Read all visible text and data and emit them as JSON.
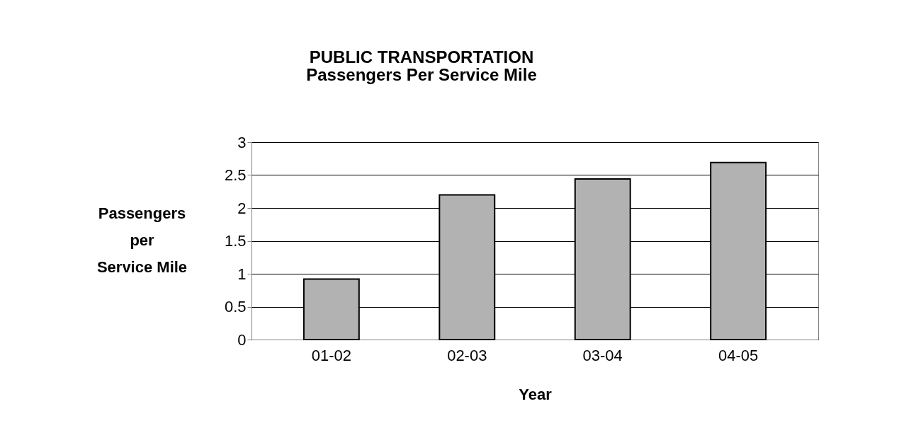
{
  "chart_data": {
    "type": "bar",
    "title": "PUBLIC TRANSPORTATION",
    "subtitle": "Passengers Per Service Mile",
    "xlabel": "Year",
    "ylabel": "Passengers\nper\nService Mile",
    "categories": [
      "01-02",
      "02-03",
      "03-04",
      "04-05"
    ],
    "values": [
      0.92,
      2.2,
      2.44,
      2.69
    ],
    "color": "#b2b2b2",
    "ylim": [
      0,
      3
    ],
    "yticks": [
      0,
      0.5,
      1,
      1.5,
      2,
      2.5,
      3
    ],
    "grid": "y"
  }
}
